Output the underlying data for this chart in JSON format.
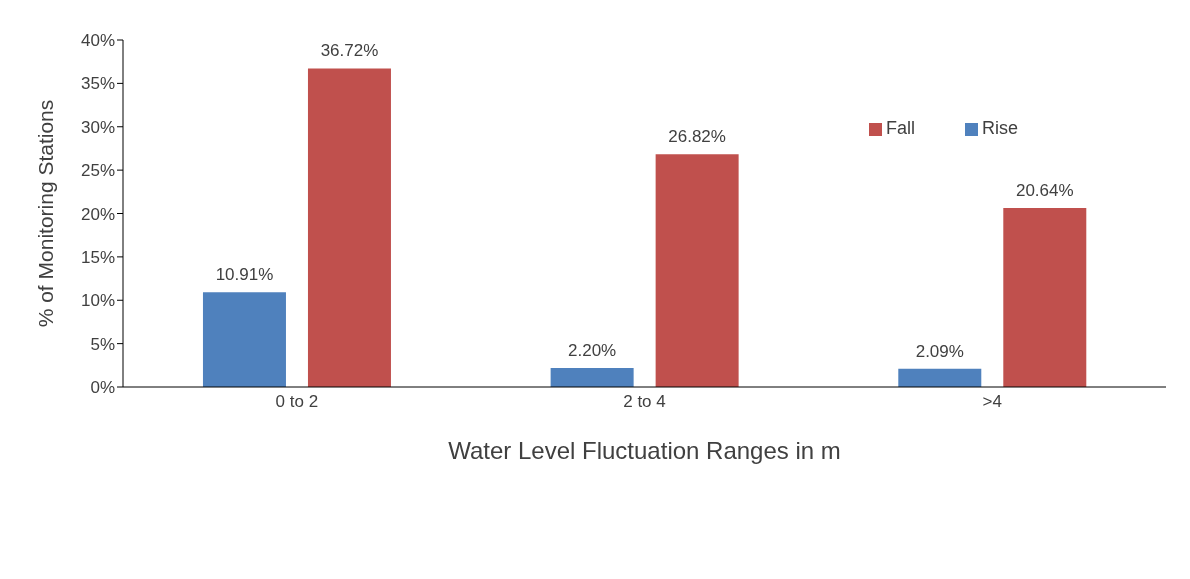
{
  "chart_data": {
    "type": "bar",
    "xlabel": "Water Level Fluctuation Ranges in m",
    "ylabel": "% of Monitoring Stations",
    "categories": [
      "0 to 2",
      "2 to 4",
      ">4"
    ],
    "series": [
      {
        "name": "Rise",
        "color": "#4f81bd",
        "values": [
          10.91,
          2.2,
          2.09
        ],
        "value_labels": [
          "10.91%",
          "2.20%",
          "2.09%"
        ]
      },
      {
        "name": "Fall",
        "color": "#c0504d",
        "values": [
          36.72,
          26.82,
          20.64
        ],
        "value_labels": [
          "36.72%",
          "26.82%",
          "20.64%"
        ]
      }
    ],
    "ylim": [
      0,
      40
    ],
    "yticks": [
      {
        "value": 0,
        "label": "0%"
      },
      {
        "value": 5,
        "label": "5%"
      },
      {
        "value": 10,
        "label": "10%"
      },
      {
        "value": 15,
        "label": "15%"
      },
      {
        "value": 20,
        "label": "20%"
      },
      {
        "value": 25,
        "label": "25%"
      },
      {
        "value": 30,
        "label": "30%"
      },
      {
        "value": 35,
        "label": "35%"
      },
      {
        "value": 40,
        "label": "40%"
      }
    ],
    "grid": false,
    "legend": "top right"
  }
}
